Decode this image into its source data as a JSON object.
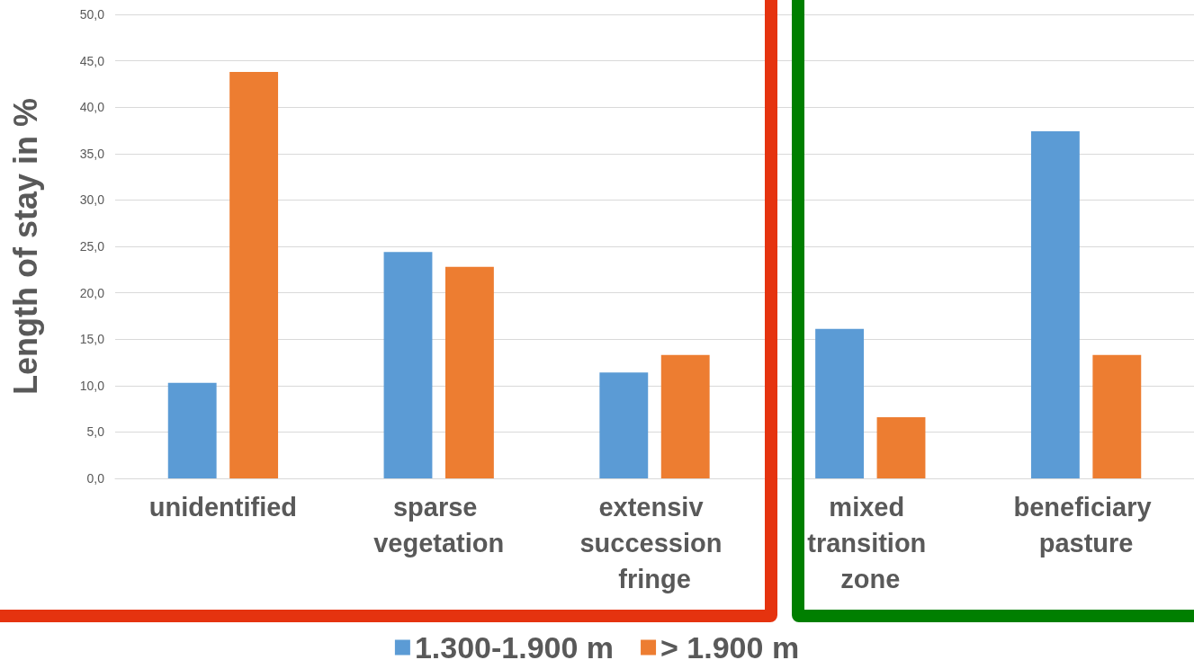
{
  "chart_data": {
    "type": "bar",
    "ylabel": "Length of stay in %",
    "categories": [
      "unidentified",
      "sparse vegetation",
      "extensiv succession fringe",
      "mixed transition zone",
      "beneficiary pasture"
    ],
    "series": [
      {
        "name": "1.300-1.900 m",
        "color": "#5b9bd5",
        "values": [
          10.3,
          24.4,
          11.4,
          16.1,
          37.4
        ]
      },
      {
        "name": "> 1.900 m",
        "color": "#ed7d31",
        "values": [
          43.8,
          22.8,
          13.3,
          6.6,
          13.3
        ]
      }
    ],
    "ylim": [
      0,
      50
    ],
    "yticks": [
      {
        "value": 0,
        "label": "0,0"
      },
      {
        "value": 5,
        "label": "5,0"
      },
      {
        "value": 10,
        "label": "10,0"
      },
      {
        "value": 15,
        "label": "15,0"
      },
      {
        "value": 20,
        "label": "20,0"
      },
      {
        "value": 25,
        "label": "25,0"
      },
      {
        "value": 30,
        "label": "30,0"
      },
      {
        "value": 35,
        "label": "35,0"
      },
      {
        "value": 40,
        "label": "40,0"
      },
      {
        "value": 45,
        "label": "45,0"
      },
      {
        "value": 50,
        "label": "50,0"
      }
    ],
    "grid": "y",
    "legend": "bottom"
  }
}
